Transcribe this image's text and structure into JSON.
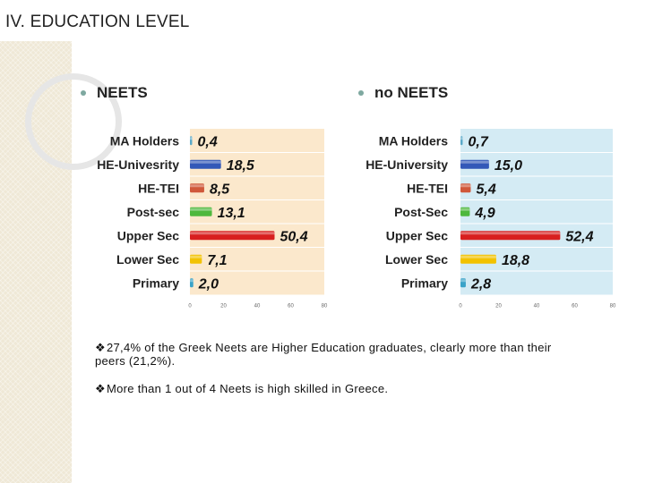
{
  "slide": {
    "title": "IV. EDUCATION LEVEL"
  },
  "sections": [
    {
      "bullet": "NEETS"
    },
    {
      "bullet": "no NEETS"
    }
  ],
  "chart_data": [
    {
      "type": "bar",
      "orientation": "horizontal",
      "categories": [
        "MA Holders",
        "HE-Univesrity",
        "HE-TEI",
        "Post-sec",
        "Upper Sec",
        "Lower Sec",
        "Primary"
      ],
      "values": [
        0.4,
        18.5,
        8.5,
        13.1,
        50.4,
        7.1,
        2.0
      ],
      "value_labels": [
        "0,4",
        "18,5",
        "8,5",
        "13,1",
        "50,4",
        "7,1",
        "2,0"
      ],
      "bar_colors": [
        "#5aa9c9",
        "#3358b8",
        "#d0583a",
        "#4eb83d",
        "#d81f1f",
        "#f2c200",
        "#3aa3c8"
      ],
      "xlim": [
        0,
        80
      ],
      "xticks": [
        "0",
        "20",
        "40",
        "60",
        "80"
      ],
      "background": "#fbe8cc"
    },
    {
      "type": "bar",
      "orientation": "horizontal",
      "categories": [
        "MA Holders",
        "HE-University",
        "HE-TEI",
        "Post-Sec",
        "Upper Sec",
        "Lower Sec",
        "Primary"
      ],
      "values": [
        0.7,
        15.0,
        5.4,
        4.9,
        52.4,
        18.8,
        2.8
      ],
      "value_labels": [
        "0,7",
        "15,0",
        "5,4",
        "4,9",
        "52,4",
        "18,8",
        "2,8"
      ],
      "bar_colors": [
        "#5aa9c9",
        "#3358b8",
        "#d0583a",
        "#4eb83d",
        "#d81f1f",
        "#f2c200",
        "#3aa3c8"
      ],
      "xlim": [
        0,
        80
      ],
      "xticks": [
        "0",
        "20",
        "40",
        "60",
        "80"
      ],
      "background": "#d4ebf4"
    }
  ],
  "notes": [
    {
      "symbol": "❖",
      "text": "27,4% of the Greek Neets are Higher Education graduates, clearly more than their peers (21,2%)."
    },
    {
      "symbol": "❖",
      "text": "More than 1 out of 4 Neets is high skilled in Greece."
    }
  ]
}
